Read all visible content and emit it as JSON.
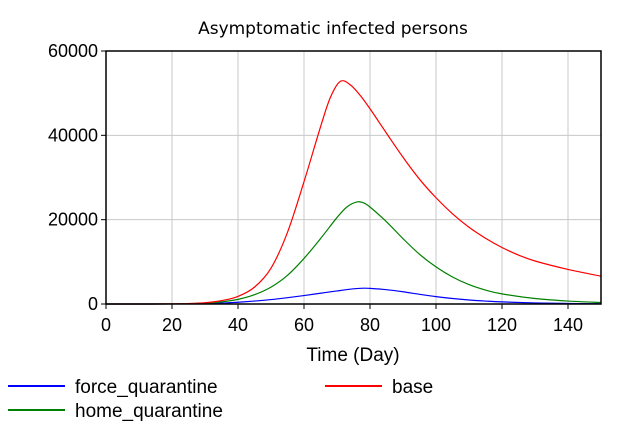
{
  "chart_data": {
    "type": "line",
    "title": "Asymptomatic infected persons",
    "xlabel": "Time (Day)",
    "ylabel": "",
    "xlim": [
      0,
      150
    ],
    "ylim": [
      0,
      60000
    ],
    "xticks": [
      0,
      20,
      40,
      60,
      80,
      100,
      120,
      140
    ],
    "yticks": [
      0,
      20000,
      40000,
      60000
    ],
    "grid": true,
    "legend_position": "bottom",
    "series": [
      {
        "name": "force_quarantine",
        "color": "#0000ff",
        "x": [
          0,
          10,
          20,
          25,
          30,
          35,
          40,
          45,
          50,
          55,
          60,
          65,
          70,
          75,
          78,
          80,
          85,
          90,
          95,
          100,
          105,
          110,
          115,
          120,
          130,
          140,
          150
        ],
        "y": [
          0,
          0,
          10,
          30,
          80,
          200,
          420,
          700,
          1050,
          1500,
          2000,
          2550,
          3100,
          3600,
          3750,
          3700,
          3400,
          2900,
          2300,
          1750,
          1300,
          950,
          700,
          500,
          250,
          130,
          60
        ]
      },
      {
        "name": "home_quarantine",
        "color": "#008000",
        "x": [
          0,
          10,
          20,
          25,
          30,
          35,
          40,
          45,
          50,
          55,
          60,
          65,
          70,
          73,
          76,
          78,
          80,
          85,
          90,
          95,
          100,
          105,
          110,
          115,
          120,
          130,
          140,
          150
        ],
        "y": [
          0,
          0,
          20,
          80,
          200,
          500,
          1100,
          2200,
          4000,
          6800,
          10800,
          15500,
          20500,
          23000,
          24200,
          24000,
          23000,
          19500,
          15500,
          11800,
          8800,
          6400,
          4600,
          3300,
          2400,
          1300,
          700,
          350
        ]
      },
      {
        "name": "base",
        "color": "#ff0000",
        "x": [
          0,
          10,
          20,
          25,
          30,
          35,
          40,
          45,
          50,
          55,
          60,
          65,
          68,
          71,
          74,
          77,
          80,
          85,
          90,
          95,
          100,
          105,
          110,
          115,
          120,
          125,
          130,
          140,
          150
        ],
        "y": [
          0,
          0,
          30,
          100,
          300,
          800,
          1800,
          4000,
          8500,
          17000,
          29000,
          42000,
          49000,
          52800,
          52000,
          49500,
          46300,
          40500,
          34800,
          29600,
          25200,
          21400,
          18200,
          15600,
          13400,
          11600,
          10200,
          8200,
          6600
        ]
      }
    ]
  }
}
